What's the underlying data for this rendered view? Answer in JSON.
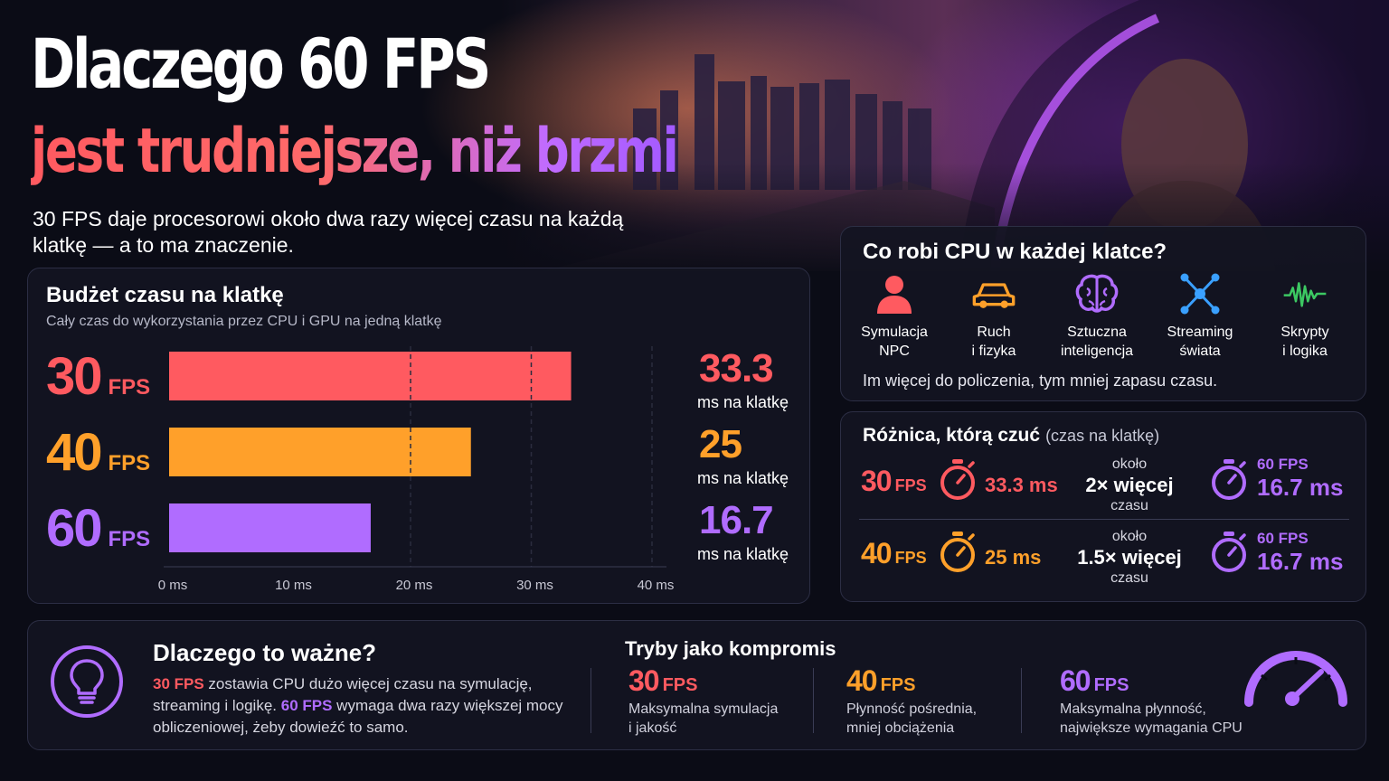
{
  "title_line1": "Dlaczego 60 FPS",
  "title_line2": "jest trudniejsze, niż brzmi",
  "subtitle": "30 FPS daje procesorowi około dwa razy więcej czasu na każdą klatkę — a to ma znaczenie.",
  "colors": {
    "fps30": "#ff5a60",
    "fps40": "#ffa02a",
    "fps60": "#b06cff",
    "background": "#0b0c16",
    "panel": "#141522"
  },
  "chart_data": {
    "type": "bar",
    "orientation": "horizontal",
    "title": "Budżet czasu na klatkę",
    "subtitle": "Cały czas do wykorzystania przez CPU i GPU na jedną klatkę",
    "categories": [
      "30 FPS",
      "40 FPS",
      "60 FPS"
    ],
    "values": [
      33.3,
      25,
      16.7
    ],
    "value_labels": [
      "33.3",
      "25",
      "16.7"
    ],
    "value_caption": "ms na klatkę",
    "xlim": [
      0,
      40
    ],
    "x_ticks": [
      0,
      10,
      20,
      30,
      40
    ],
    "x_tick_labels": [
      "0 ms",
      "10 ms",
      "20 ms",
      "30 ms",
      "40 ms"
    ]
  },
  "budget": {
    "rows": [
      {
        "num": "30",
        "unit": "FPS"
      },
      {
        "num": "40",
        "unit": "FPS"
      },
      {
        "num": "60",
        "unit": "FPS"
      }
    ]
  },
  "cpu": {
    "title": "Co robi CPU w każdej klatce?",
    "tasks": [
      {
        "icon": "person-icon",
        "line1": "Symulacja",
        "line2": "NPC"
      },
      {
        "icon": "car-icon",
        "line1": "Ruch",
        "line2": "i fizyka"
      },
      {
        "icon": "brain-icon",
        "line1": "Sztuczna",
        "line2": "inteligencja"
      },
      {
        "icon": "network-icon",
        "line1": "Streaming",
        "line2": "świata"
      },
      {
        "icon": "waveform-icon",
        "line1": "Skrypty",
        "line2": "i logika"
      }
    ],
    "note": "Im więcej do policzenia, tym mniej zapasu czasu."
  },
  "diff": {
    "title": "Różnica, którą czuć",
    "title_note": "(czas na klatkę)",
    "rows": [
      {
        "num": "30",
        "unit": "FPS",
        "ms": "33.3 ms",
        "about": "około",
        "factor": "2× więcej",
        "time": "czasu",
        "ref_fps": "60 FPS",
        "ref_ms": "16.7 ms"
      },
      {
        "num": "40",
        "unit": "FPS",
        "ms": "25 ms",
        "about": "około",
        "factor": "1.5× więcej",
        "time": "czasu",
        "ref_fps": "60 FPS",
        "ref_ms": "16.7 ms"
      }
    ]
  },
  "why": {
    "title": "Dlaczego to ważne?",
    "hl1": "30 FPS",
    "t1": " zostawia CPU dużo więcej czasu na symulację, streaming i logikę. ",
    "hl2": "60 FPS",
    "t2": " wymaga dwa razy większej mocy obliczeniowej, żeby dowieźć to samo."
  },
  "modes": {
    "title": "Tryby jako kompromis",
    "items": [
      {
        "num": "30",
        "unit": "FPS",
        "line1": "Maksymalna symulacja",
        "line2": "i jakość"
      },
      {
        "num": "40",
        "unit": "FPS",
        "line1": "Płynność pośrednia,",
        "line2": "mniej obciążenia"
      },
      {
        "num": "60",
        "unit": "FPS",
        "line1": "Maksymalna płynność,",
        "line2": "największe wymagania CPU"
      }
    ]
  }
}
